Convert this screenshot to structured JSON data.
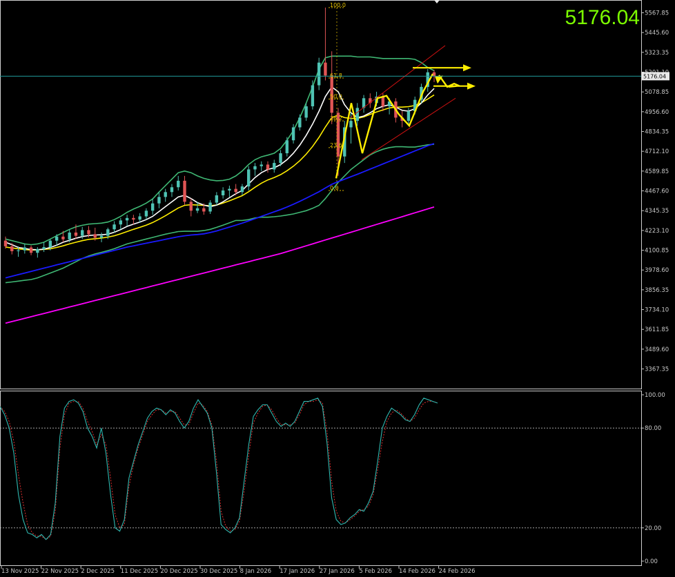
{
  "chart_data": [
    {
      "type": "candlestick",
      "title": "",
      "big_price_label": "5176.04",
      "current_price": 5176.04,
      "current_price_tag": "5176.04",
      "price_axis_ticks": [
        "5567.85",
        "5445.60",
        "5323.35",
        "5201.10",
        "5078.85",
        "4956.60",
        "4834.35",
        "4712.10",
        "4589.85",
        "4467.60",
        "4345.35",
        "4223.10",
        "4100.85",
        "3978.60",
        "3856.35",
        "3734.10",
        "3611.85",
        "3489.60",
        "3367.35"
      ],
      "ylim": [
        3290,
        5640
      ],
      "time_axis_labels": [
        "13 Nov 2025",
        "22 Nov 2025",
        "2 Dec 2025",
        "11 Dec 2025",
        "20 Dec 2025",
        "30 Dec 2025",
        "8 Jan 2026",
        "17 Jan 2026",
        "27 Jan 2026",
        "5 Feb 2026",
        "14 Feb 2026",
        "24 Feb 2026"
      ],
      "colors": {
        "up": "#4fc3b4",
        "down": "#e05555",
        "ma_fast": "#ffffff",
        "ma_mid": "#ffee00",
        "bands": "#3fb874",
        "ma_slow": "#1a1aff",
        "ma_long": "#ff00ff",
        "channel": "#cc1111",
        "arrows": "#ffee00",
        "price_line": "#1f9a9a"
      },
      "candles": [
        {
          "o": 4160,
          "h": 4185,
          "l": 4110,
          "c": 4125
        },
        {
          "o": 4125,
          "h": 4145,
          "l": 4075,
          "c": 4095
        },
        {
          "o": 4095,
          "h": 4125,
          "l": 4060,
          "c": 4100
        },
        {
          "o": 4100,
          "h": 4140,
          "l": 4080,
          "c": 4118
        },
        {
          "o": 4118,
          "h": 4130,
          "l": 4070,
          "c": 4085
        },
        {
          "o": 4085,
          "h": 4120,
          "l": 4055,
          "c": 4108
        },
        {
          "o": 4108,
          "h": 4150,
          "l": 4090,
          "c": 4120
        },
        {
          "o": 4120,
          "h": 4170,
          "l": 4100,
          "c": 4160
        },
        {
          "o": 4160,
          "h": 4200,
          "l": 4130,
          "c": 4185
        },
        {
          "o": 4185,
          "h": 4220,
          "l": 4150,
          "c": 4168
        },
        {
          "o": 4168,
          "h": 4230,
          "l": 4150,
          "c": 4210
        },
        {
          "o": 4210,
          "h": 4260,
          "l": 4170,
          "c": 4190
        },
        {
          "o": 4190,
          "h": 4245,
          "l": 4170,
          "c": 4225
        },
        {
          "o": 4225,
          "h": 4250,
          "l": 4180,
          "c": 4200
        },
        {
          "o": 4200,
          "h": 4240,
          "l": 4160,
          "c": 4178
        },
        {
          "o": 4178,
          "h": 4210,
          "l": 4150,
          "c": 4190
        },
        {
          "o": 4190,
          "h": 4240,
          "l": 4170,
          "c": 4230
        },
        {
          "o": 4230,
          "h": 4280,
          "l": 4210,
          "c": 4260
        },
        {
          "o": 4260,
          "h": 4300,
          "l": 4230,
          "c": 4285
        },
        {
          "o": 4285,
          "h": 4320,
          "l": 4250,
          "c": 4300
        },
        {
          "o": 4300,
          "h": 4320,
          "l": 4260,
          "c": 4290
        },
        {
          "o": 4290,
          "h": 4330,
          "l": 4270,
          "c": 4310
        },
        {
          "o": 4310,
          "h": 4360,
          "l": 4290,
          "c": 4345
        },
        {
          "o": 4345,
          "h": 4420,
          "l": 4320,
          "c": 4390
        },
        {
          "o": 4390,
          "h": 4460,
          "l": 4360,
          "c": 4430
        },
        {
          "o": 4430,
          "h": 4480,
          "l": 4400,
          "c": 4460
        },
        {
          "o": 4460,
          "h": 4510,
          "l": 4430,
          "c": 4490
        },
        {
          "o": 4490,
          "h": 4560,
          "l": 4470,
          "c": 4530
        },
        {
          "o": 4530,
          "h": 4560,
          "l": 4380,
          "c": 4400
        },
        {
          "o": 4400,
          "h": 4420,
          "l": 4310,
          "c": 4345
        },
        {
          "o": 4345,
          "h": 4400,
          "l": 4330,
          "c": 4360
        },
        {
          "o": 4360,
          "h": 4390,
          "l": 4320,
          "c": 4340
        },
        {
          "o": 4340,
          "h": 4410,
          "l": 4325,
          "c": 4395
        },
        {
          "o": 4395,
          "h": 4460,
          "l": 4380,
          "c": 4440
        },
        {
          "o": 4440,
          "h": 4490,
          "l": 4420,
          "c": 4470
        },
        {
          "o": 4470,
          "h": 4500,
          "l": 4430,
          "c": 4480
        },
        {
          "o": 4480,
          "h": 4510,
          "l": 4440,
          "c": 4460
        },
        {
          "o": 4460,
          "h": 4510,
          "l": 4440,
          "c": 4495
        },
        {
          "o": 4495,
          "h": 4620,
          "l": 4470,
          "c": 4600
        },
        {
          "o": 4600,
          "h": 4640,
          "l": 4560,
          "c": 4620
        },
        {
          "o": 4620,
          "h": 4650,
          "l": 4590,
          "c": 4630
        },
        {
          "o": 4630,
          "h": 4650,
          "l": 4580,
          "c": 4600
        },
        {
          "o": 4600,
          "h": 4660,
          "l": 4580,
          "c": 4640
        },
        {
          "o": 4640,
          "h": 4720,
          "l": 4620,
          "c": 4700
        },
        {
          "o": 4700,
          "h": 4800,
          "l": 4680,
          "c": 4780
        },
        {
          "o": 4780,
          "h": 4880,
          "l": 4760,
          "c": 4860
        },
        {
          "o": 4860,
          "h": 4940,
          "l": 4840,
          "c": 4920
        },
        {
          "o": 4920,
          "h": 5010,
          "l": 4900,
          "c": 4990
        },
        {
          "o": 4990,
          "h": 5150,
          "l": 4970,
          "c": 5120
        },
        {
          "o": 5120,
          "h": 5290,
          "l": 5090,
          "c": 5260
        },
        {
          "o": 5260,
          "h": 5600,
          "l": 5150,
          "c": 5180
        },
        {
          "o": 5180,
          "h": 5330,
          "l": 4880,
          "c": 4950
        },
        {
          "o": 4950,
          "h": 4980,
          "l": 4560,
          "c": 4680
        },
        {
          "o": 4680,
          "h": 4900,
          "l": 4640,
          "c": 4860
        },
        {
          "o": 4860,
          "h": 4950,
          "l": 4760,
          "c": 4900
        },
        {
          "o": 4900,
          "h": 5010,
          "l": 4870,
          "c": 4980
        },
        {
          "o": 4980,
          "h": 5060,
          "l": 4950,
          "c": 5040
        },
        {
          "o": 5040,
          "h": 5070,
          "l": 4980,
          "c": 5010
        },
        {
          "o": 5010,
          "h": 5080,
          "l": 4990,
          "c": 5050
        },
        {
          "o": 5050,
          "h": 5070,
          "l": 4960,
          "c": 4990
        },
        {
          "o": 4990,
          "h": 5040,
          "l": 4940,
          "c": 5020
        },
        {
          "o": 5020,
          "h": 5040,
          "l": 4890,
          "c": 4920
        },
        {
          "o": 4920,
          "h": 4960,
          "l": 4860,
          "c": 4900
        },
        {
          "o": 4900,
          "h": 4980,
          "l": 4870,
          "c": 4960
        },
        {
          "o": 4960,
          "h": 5050,
          "l": 4940,
          "c": 5030
        },
        {
          "o": 5030,
          "h": 5130,
          "l": 5010,
          "c": 5110
        },
        {
          "o": 5110,
          "h": 5220,
          "l": 5080,
          "c": 5200
        },
        {
          "o": 5200,
          "h": 5215,
          "l": 5140,
          "c": 5176
        }
      ],
      "ma_fast": [
        4150,
        4135,
        4118,
        4112,
        4105,
        4104,
        4108,
        4118,
        4132,
        4150,
        4162,
        4175,
        4185,
        4192,
        4195,
        4196,
        4200,
        4212,
        4228,
        4248,
        4262,
        4275,
        4290,
        4310,
        4340,
        4370,
        4400,
        4430,
        4440,
        4420,
        4395,
        4380,
        4370,
        4380,
        4400,
        4425,
        4450,
        4470,
        4510,
        4550,
        4580,
        4600,
        4610,
        4630,
        4660,
        4700,
        4750,
        4810,
        4880,
        4960,
        5050,
        5110,
        5080,
        5000,
        4950,
        4920,
        4930,
        4950,
        4975,
        4990,
        5000,
        4985,
        4965,
        4960,
        4975,
        5010,
        5060,
        5100
      ],
      "ma_mid": [
        4120,
        4115,
        4110,
        4105,
        4102,
        4103,
        4106,
        4110,
        4118,
        4128,
        4140,
        4150,
        4160,
        4168,
        4172,
        4176,
        4182,
        4190,
        4202,
        4216,
        4230,
        4242,
        4256,
        4272,
        4292,
        4314,
        4338,
        4362,
        4378,
        4382,
        4380,
        4378,
        4376,
        4380,
        4392,
        4406,
        4422,
        4438,
        4462,
        4490,
        4515,
        4535,
        4550,
        4568,
        4592,
        4620,
        4654,
        4694,
        4742,
        4798,
        4862,
        4920,
        4935,
        4920,
        4915,
        4915,
        4925,
        4940,
        4955,
        4968,
        4980,
        4985,
        4985,
        4988,
        4995,
        5012,
        5035,
        5060
      ],
      "ma_slow": [
        3930,
        3940,
        3950,
        3960,
        3970,
        3980,
        3990,
        4000,
        4010,
        4020,
        4030,
        4040,
        4050,
        4060,
        4070,
        4080,
        4090,
        4100,
        4110,
        4120,
        4128,
        4136,
        4144,
        4152,
        4160,
        4168,
        4176,
        4184,
        4190,
        4195,
        4198,
        4202,
        4210,
        4220,
        4232,
        4244,
        4256,
        4268,
        4282,
        4296,
        4310,
        4324,
        4338,
        4352,
        4368,
        4385,
        4403,
        4422,
        4442,
        4462,
        4485,
        4508,
        4525,
        4540,
        4555,
        4570,
        4586,
        4602,
        4618,
        4634,
        4650,
        4666,
        4682,
        4698,
        4714,
        4730,
        4746,
        4760
      ],
      "ma_long": [
        3650,
        3660,
        3670,
        3680,
        3690,
        3700,
        3710,
        3720,
        3730,
        3740,
        3750,
        3760,
        3770,
        3780,
        3790,
        3800,
        3810,
        3820,
        3830,
        3840,
        3850,
        3860,
        3870,
        3880,
        3890,
        3900,
        3910,
        3920,
        3930,
        3940,
        3950,
        3960,
        3970,
        3980,
        3990,
        4000,
        4010,
        4020,
        4030,
        4040,
        4050,
        4060,
        4070,
        4080,
        4092,
        4104,
        4116,
        4128,
        4140,
        4152,
        4164,
        4176,
        4188,
        4200,
        4212,
        4224,
        4236,
        4248,
        4260,
        4272,
        4284,
        4296,
        4308,
        4320,
        4332,
        4344,
        4356,
        4368
      ],
      "band_upper": [
        4170,
        4160,
        4150,
        4140,
        4135,
        4140,
        4150,
        4170,
        4190,
        4210,
        4230,
        4245,
        4255,
        4262,
        4265,
        4268,
        4275,
        4290,
        4310,
        4335,
        4355,
        4372,
        4392,
        4418,
        4460,
        4500,
        4540,
        4580,
        4590,
        4580,
        4560,
        4545,
        4535,
        4530,
        4532,
        4540,
        4560,
        4590,
        4630,
        4660,
        4678,
        4688,
        4700,
        4730,
        4780,
        4840,
        4920,
        5010,
        5110,
        5220,
        5290,
        5300,
        5300,
        5300,
        5300,
        5295,
        5295,
        5295,
        5290,
        5285,
        5285,
        5285,
        5285,
        5285,
        5280,
        5260,
        5230,
        5210
      ],
      "band_lower": [
        3900,
        3905,
        3910,
        3915,
        3920,
        3930,
        3945,
        3960,
        3975,
        3990,
        4010,
        4030,
        4050,
        4065,
        4078,
        4088,
        4098,
        4110,
        4125,
        4140,
        4150,
        4160,
        4170,
        4180,
        4190,
        4200,
        4208,
        4216,
        4218,
        4218,
        4218,
        4222,
        4230,
        4242,
        4256,
        4270,
        4285,
        4285,
        4290,
        4300,
        4305,
        4305,
        4308,
        4312,
        4318,
        4325,
        4335,
        4345,
        4360,
        4378,
        4420,
        4470,
        4520,
        4560,
        4600,
        4630,
        4660,
        4690,
        4710,
        4725,
        4735,
        4740,
        4740,
        4738,
        4738,
        4745,
        4752,
        4755
      ],
      "fibonacci_levels": [
        {
          "label": "100.0",
          "price": 5600
        },
        {
          "label": "61.8",
          "price": 5165
        },
        {
          "label": "50.0",
          "price": 5035
        },
        {
          "label": "38.2",
          "price": 4900
        },
        {
          "label": "23.6",
          "price": 4735
        },
        {
          "label": "0.0",
          "price": 4470
        }
      ]
    },
    {
      "type": "line",
      "title": "",
      "y_axis_ticks": [
        "100.00",
        "80.00",
        "20.00",
        "0.00"
      ],
      "ylim": [
        0,
        100
      ],
      "levels": [
        80,
        20
      ],
      "series": [
        {
          "values": [
            93,
            88,
            80,
            65,
            40,
            25,
            17,
            16,
            14,
            16,
            13,
            16,
            35,
            75,
            92,
            96,
            97,
            95,
            90,
            80,
            75,
            68,
            80,
            65,
            40,
            20,
            18,
            25,
            50,
            60,
            70,
            78,
            86,
            90,
            92,
            91,
            88,
            91,
            89,
            84,
            80,
            84,
            92,
            97,
            93,
            89,
            80,
            53,
            22,
            19,
            17,
            20,
            26,
            48,
            70,
            87,
            91,
            94,
            94,
            89,
            84,
            81,
            83,
            81,
            84,
            90,
            96,
            96,
            97,
            98,
            93,
            71,
            38,
            25,
            22,
            23,
            26,
            28,
            31,
            30,
            35,
            42,
            60,
            80,
            87,
            92,
            90,
            88,
            85,
            84,
            88,
            94,
            98,
            97,
            96,
            95
          ]
        },
        {
          "values": [
            93,
            90,
            84,
            72,
            52,
            35,
            22,
            17,
            15,
            15,
            13,
            15,
            30,
            68,
            88,
            95,
            96,
            96,
            92,
            84,
            78,
            70,
            76,
            70,
            50,
            28,
            20,
            22,
            45,
            58,
            68,
            76,
            84,
            88,
            91,
            91,
            89,
            90,
            90,
            86,
            82,
            82,
            89,
            95,
            94,
            90,
            82,
            60,
            30,
            21,
            18,
            19,
            24,
            42,
            64,
            83,
            89,
            93,
            94,
            91,
            86,
            82,
            82,
            82,
            83,
            88,
            94,
            96,
            96,
            97,
            95,
            78,
            48,
            30,
            24,
            23,
            25,
            27,
            30,
            31,
            33,
            40,
            55,
            72,
            84,
            89,
            91,
            89,
            86,
            84,
            86,
            91,
            95,
            96,
            96,
            95
          ]
        }
      ]
    }
  ]
}
